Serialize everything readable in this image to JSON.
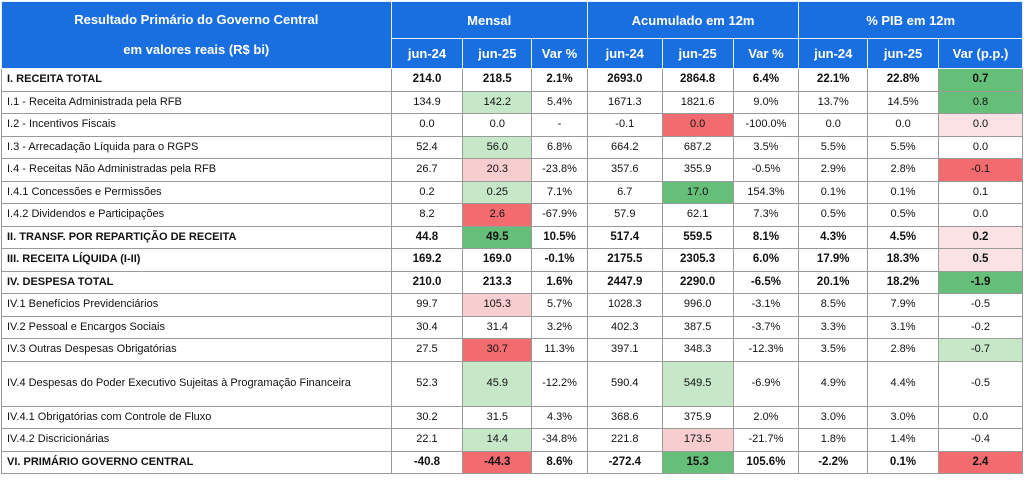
{
  "chart_data": {
    "type": "table",
    "header": {
      "title_line1": "Resultado Primário do Governo Central",
      "title_line2": "em valores reais (R$ bi)",
      "groups": [
        "Mensal",
        "Acumulado em 12m",
        "% PIB em 12m"
      ],
      "columns": [
        "jun-24",
        "jun-25",
        "Var %",
        "jun-24",
        "jun-25",
        "Var %",
        "jun-24",
        "jun-25",
        "Var (p.p.)"
      ]
    },
    "rows": [
      {
        "label": "I. RECEITA TOTAL",
        "bold": true,
        "values": [
          "214.0",
          "218.5",
          "2.1%",
          "2693.0",
          "2864.8",
          "6.4%",
          "22.1%",
          "22.8%",
          "0.7"
        ]
      },
      {
        "label": "I.1 -  Receita Administrada pela RFB",
        "values": [
          "134.9",
          "142.2",
          "5.4%",
          "1671.3",
          "1821.6",
          "9.0%",
          "13.7%",
          "14.5%",
          "0.8"
        ]
      },
      {
        "label": "I.2 -  Incentivos Fiscais",
        "values": [
          "0.0",
          "0.0",
          "-",
          "-0.1",
          "0.0",
          "-100.0%",
          "0.0",
          "0.0",
          "0.0"
        ]
      },
      {
        "label": "I.3 -  Arrecadação Líquida para o RGPS",
        "values": [
          "52.4",
          "56.0",
          "6.8%",
          "664.2",
          "687.2",
          "3.5%",
          "5.5%",
          "5.5%",
          "0.0"
        ]
      },
      {
        "label": "I.4 -  Receitas Não Administradas pela RFB",
        "values": [
          "26.7",
          "20.3",
          "-23.8%",
          "357.6",
          "355.9",
          "-0.5%",
          "2.9%",
          "2.8%",
          "-0.1"
        ]
      },
      {
        "label": "I.4.1  Concessões e Permissões",
        "values": [
          "0.2",
          "0.25",
          "7.1%",
          "6.7",
          "17.0",
          "154.3%",
          "0.1%",
          "0.1%",
          "0.1"
        ]
      },
      {
        "label": "I.4.2  Dividendos e Participações",
        "values": [
          "8.2",
          "2.6",
          "-67.9%",
          "57.9",
          "62.1",
          "7.3%",
          "0.5%",
          "0.5%",
          "0.0"
        ]
      },
      {
        "label": "II. TRANSF. POR REPARTIÇÃO DE RECEITA",
        "bold": true,
        "values": [
          "44.8",
          "49.5",
          "10.5%",
          "517.4",
          "559.5",
          "8.1%",
          "4.3%",
          "4.5%",
          "0.2"
        ]
      },
      {
        "label": "III. RECEITA LÍQUIDA  (I-II)",
        "bold": true,
        "values": [
          "169.2",
          "169.0",
          "-0.1%",
          "2175.5",
          "2305.3",
          "6.0%",
          "17.9%",
          "18.3%",
          "0.5"
        ]
      },
      {
        "label": "IV. DESPESA TOTAL",
        "bold": true,
        "values": [
          "210.0",
          "213.3",
          "1.6%",
          "2447.9",
          "2290.0",
          "-6.5%",
          "20.1%",
          "18.2%",
          "-1.9"
        ]
      },
      {
        "label": "IV.1  Benefícios Previdenciários",
        "values": [
          "99.7",
          "105.3",
          "5.7%",
          "1028.3",
          "996.0",
          "-3.1%",
          "8.5%",
          "7.9%",
          "-0.5"
        ]
      },
      {
        "label": "IV.2  Pessoal e Encargos Sociais",
        "values": [
          "30.4",
          "31.4",
          "3.2%",
          "402.3",
          "387.5",
          "-3.7%",
          "3.3%",
          "3.1%",
          "-0.2"
        ]
      },
      {
        "label": "IV.3  Outras Despesas Obrigatórias",
        "values": [
          "27.5",
          "30.7",
          "11.3%",
          "397.1",
          "348.3",
          "-12.3%",
          "3.5%",
          "2.8%",
          "-0.7"
        ]
      },
      {
        "label": "IV.4  Despesas do Poder Executivo Sujeitas à Programação Financeira",
        "tall": true,
        "values": [
          "52.3",
          "45.9",
          "-12.2%",
          "590.4",
          "549.5",
          "-6.9%",
          "4.9%",
          "4.4%",
          "-0.5"
        ]
      },
      {
        "label": "IV.4.1 Obrigatórias com Controle de Fluxo",
        "values": [
          "30.2",
          "31.5",
          "4.3%",
          "368.6",
          "375.9",
          "2.0%",
          "3.0%",
          "3.0%",
          "0.0"
        ]
      },
      {
        "label": "IV.4.2 Discricionárias",
        "values": [
          "22.1",
          "14.4",
          "-34.8%",
          "221.8",
          "173.5",
          "-21.7%",
          "1.8%",
          "1.4%",
          "-0.4"
        ]
      },
      {
        "label": "VI. PRIMÁRIO GOVERNO CENTRAL",
        "bold": true,
        "values": [
          "-40.8",
          "-44.3",
          "8.6%",
          "-272.4",
          "15.3",
          "105.6%",
          "-2.2%",
          "0.1%",
          "2.4"
        ]
      }
    ],
    "cell_colors": {
      "header_blue": "#1a6fe0",
      "positive_light": "#c6e8c9",
      "positive_strong": "#66bf79",
      "negative_light": "#f8cdd0",
      "negative_strong": "#f26c6f",
      "negative_pale": "#fbe3e5"
    }
  }
}
